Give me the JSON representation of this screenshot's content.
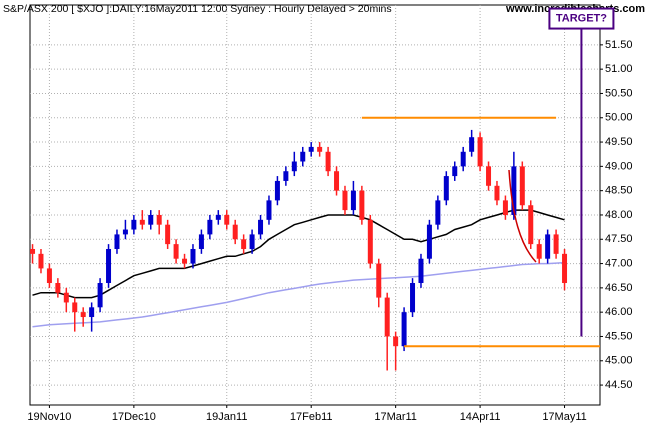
{
  "chart_data": {
    "type": "candlestick",
    "title": "S&P/ASX 200 [ $XJO ]:DAILY:16May2011 12:00 Sydney : Hourly Delayed > 20mins",
    "watermark": "www.incrediblecharts.com",
    "categories": [
      null,
      null,
      "19Nov10",
      null,
      null,
      null,
      null,
      null,
      null,
      null,
      null,
      null,
      "17Dec10",
      null,
      null,
      null,
      null,
      null,
      null,
      null,
      null,
      null,
      null,
      "19Jan11",
      null,
      null,
      null,
      null,
      null,
      null,
      null,
      null,
      null,
      "17Feb11",
      null,
      null,
      null,
      null,
      null,
      null,
      null,
      null,
      null,
      "17Mar11",
      null,
      null,
      null,
      null,
      null,
      null,
      null,
      null,
      null,
      "14Apr11",
      null,
      null,
      null,
      null,
      null,
      null,
      null,
      null,
      null,
      "17May11"
    ],
    "open": [
      47.3,
      47.2,
      46.9,
      46.6,
      46.4,
      46.2,
      46.0,
      45.9,
      46.1,
      46.6,
      47.3,
      47.6,
      47.7,
      47.9,
      47.8,
      48.0,
      47.8,
      47.4,
      47.1,
      47.0,
      47.3,
      47.6,
      47.9,
      48.0,
      47.8,
      47.5,
      47.3,
      47.6,
      47.9,
      48.3,
      48.7,
      48.9,
      49.1,
      49.3,
      49.4,
      49.3,
      48.9,
      48.5,
      48.1,
      48.5,
      47.9,
      47.0,
      46.3,
      45.5,
      45.3,
      46.0,
      46.6,
      47.1,
      47.8,
      48.3,
      48.8,
      49.0,
      49.3,
      49.6,
      49.0,
      48.6,
      48.3,
      48.0,
      49.0,
      48.2,
      47.4,
      47.1,
      47.6,
      47.2
    ],
    "high": [
      47.4,
      47.3,
      47.0,
      46.7,
      46.5,
      46.3,
      46.1,
      46.2,
      46.7,
      47.4,
      47.7,
      47.9,
      48.0,
      48.1,
      48.1,
      48.1,
      47.9,
      47.5,
      47.2,
      47.4,
      47.7,
      48.0,
      48.1,
      48.1,
      47.9,
      47.6,
      47.7,
      48.0,
      48.4,
      48.8,
      49.0,
      49.3,
      49.4,
      49.5,
      49.5,
      49.4,
      49.0,
      48.6,
      48.7,
      48.6,
      48.0,
      47.1,
      46.4,
      45.6,
      46.1,
      46.7,
      47.2,
      47.9,
      48.4,
      48.9,
      49.1,
      49.4,
      49.75,
      49.7,
      49.1,
      48.7,
      48.4,
      49.3,
      49.1,
      48.3,
      47.5,
      47.7,
      47.7,
      47.3
    ],
    "low": [
      47.0,
      46.8,
      46.5,
      46.3,
      46.0,
      45.6,
      45.7,
      45.6,
      46.0,
      46.5,
      47.2,
      47.5,
      47.6,
      47.7,
      47.7,
      47.6,
      47.3,
      47.0,
      46.9,
      46.9,
      47.2,
      47.5,
      47.8,
      47.7,
      47.4,
      47.2,
      47.2,
      47.5,
      47.8,
      48.2,
      48.6,
      48.8,
      49.0,
      49.2,
      49.2,
      48.8,
      48.4,
      48.0,
      48.0,
      47.8,
      46.9,
      46.1,
      44.8,
      44.8,
      45.2,
      45.9,
      46.5,
      47.0,
      47.7,
      48.2,
      48.7,
      48.9,
      49.2,
      48.9,
      48.5,
      48.2,
      47.9,
      47.9,
      48.1,
      47.3,
      47.0,
      47.0,
      47.1,
      46.45
    ],
    "close": [
      47.2,
      46.9,
      46.6,
      46.4,
      46.2,
      46.0,
      45.9,
      46.1,
      46.6,
      47.3,
      47.6,
      47.7,
      47.9,
      47.8,
      48.0,
      47.8,
      47.4,
      47.1,
      47.0,
      47.3,
      47.6,
      47.9,
      48.0,
      47.8,
      47.5,
      47.3,
      47.6,
      47.9,
      48.3,
      48.7,
      48.9,
      49.1,
      49.3,
      49.4,
      49.3,
      48.9,
      48.5,
      48.1,
      48.5,
      47.9,
      47.0,
      46.3,
      45.5,
      45.3,
      46.0,
      46.6,
      47.1,
      47.8,
      48.3,
      48.8,
      49.0,
      49.3,
      49.6,
      49.0,
      48.6,
      48.3,
      48.0,
      49.0,
      48.2,
      47.4,
      47.1,
      47.6,
      47.2,
      46.6
    ],
    "up_color": "#0000cc",
    "down_color": "#ff2020",
    "averages": [
      {
        "color": "#000000",
        "values": [
          46.35,
          46.4,
          46.4,
          46.4,
          46.35,
          46.3,
          46.3,
          46.3,
          46.35,
          46.45,
          46.55,
          46.65,
          46.75,
          46.8,
          46.85,
          46.9,
          46.9,
          46.9,
          46.9,
          46.95,
          47.0,
          47.05,
          47.1,
          47.15,
          47.15,
          47.2,
          47.25,
          47.35,
          47.5,
          47.6,
          47.7,
          47.8,
          47.85,
          47.9,
          47.95,
          48.0,
          48.0,
          48.0,
          48.0,
          47.95,
          47.9,
          47.8,
          47.7,
          47.6,
          47.5,
          47.5,
          47.45,
          47.5,
          47.55,
          47.6,
          47.7,
          47.75,
          47.8,
          47.9,
          47.95,
          48.0,
          48.05,
          48.1,
          48.1,
          48.1,
          48.05,
          48.0,
          47.95,
          47.9
        ]
      },
      {
        "color": "#9f9fef",
        "values": [
          45.7,
          45.72,
          45.74,
          45.75,
          45.76,
          45.77,
          45.78,
          45.79,
          45.8,
          45.82,
          45.84,
          45.86,
          45.88,
          45.9,
          45.93,
          45.96,
          45.99,
          46.02,
          46.05,
          46.08,
          46.11,
          46.14,
          46.17,
          46.2,
          46.24,
          46.28,
          46.32,
          46.36,
          46.4,
          46.43,
          46.46,
          46.49,
          46.52,
          46.55,
          46.58,
          46.6,
          46.62,
          46.64,
          46.66,
          46.67,
          46.68,
          46.69,
          46.7,
          46.71,
          46.72,
          46.73,
          46.74,
          46.76,
          46.78,
          46.8,
          46.82,
          46.84,
          46.86,
          46.88,
          46.9,
          46.92,
          46.94,
          46.96,
          46.98,
          46.99,
          47.0,
          47.0,
          47.01,
          47.02
        ]
      }
    ],
    "levels": [
      {
        "value": 50.0,
        "from": 39,
        "to": 62,
        "color": "#ff8c00"
      },
      {
        "value": 45.3,
        "from": 44,
        "to": 67.2,
        "color": "#ff8c00"
      }
    ],
    "target": {
      "label": "TARGET?",
      "x": 65,
      "from": 45.5,
      "to": 52.0,
      "color": "#4b0082"
    },
    "xlim": [
      -0.3,
      67.2
    ],
    "ylim": [
      44.09,
      52.32
    ],
    "yticks": [
      {
        "value": 44.5,
        "label": "44.50"
      },
      {
        "value": 45,
        "label": "45.00"
      },
      {
        "value": 45.5,
        "label": "45.50"
      },
      {
        "value": 46,
        "label": "46.00"
      },
      {
        "value": 46.5,
        "label": "46.50"
      },
      {
        "value": 47,
        "label": "47.00"
      },
      {
        "value": 47.5,
        "label": "47.50"
      },
      {
        "value": 48,
        "label": "48.00"
      },
      {
        "value": 48.5,
        "label": "48.50"
      },
      {
        "value": 49,
        "label": "49.00"
      },
      {
        "value": 49.5,
        "label": "49.50"
      },
      {
        "value": 50,
        "label": "50.00"
      },
      {
        "value": 50.5,
        "label": "50.50"
      },
      {
        "value": 51,
        "label": "51.00"
      },
      {
        "value": 51.5,
        "label": "51.50"
      }
    ],
    "grid": true
  }
}
